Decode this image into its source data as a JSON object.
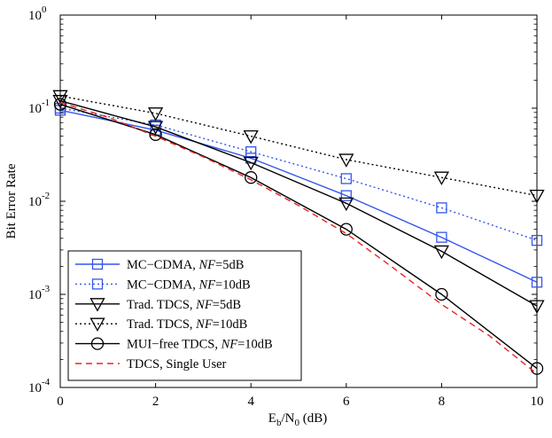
{
  "chart_data": {
    "type": "line",
    "title": "",
    "xlabel": {
      "main": "E",
      "sub1": "b",
      "mid": "/N",
      "sub2": "0",
      "tail": " (dB)"
    },
    "ylabel": "Bit Error Rate",
    "xlim": [
      0,
      10
    ],
    "ylim": [
      0.0001,
      1
    ],
    "yscale": "log",
    "grid": false,
    "legend_position": "bottom-left",
    "x_ticks": [
      "0",
      "2",
      "4",
      "6",
      "8",
      "10"
    ],
    "y_ticks": [
      {
        "base": "10",
        "exp": "-4"
      },
      {
        "base": "10",
        "exp": "-3"
      },
      {
        "base": "10",
        "exp": "-2"
      },
      {
        "base": "10",
        "exp": "-1"
      },
      {
        "base": "10",
        "exp": "0"
      }
    ],
    "series": [
      {
        "name": {
          "pre": "MC−CDMA, ",
          "nf": "NF",
          "post": "=5dB"
        },
        "color": "#3355ee",
        "dash": "solid",
        "marker": "square",
        "x": [
          0,
          2,
          4,
          6,
          8,
          10
        ],
        "y": [
          0.095,
          0.058,
          0.029,
          0.0115,
          0.0041,
          0.00135
        ]
      },
      {
        "name": {
          "pre": "MC−CDMA, ",
          "nf": "NF",
          "post": "=10dB"
        },
        "color": "#3355ee",
        "dash": "dotted",
        "marker": "square",
        "x": [
          0,
          2,
          4,
          6,
          8,
          10
        ],
        "y": [
          0.1,
          0.066,
          0.034,
          0.0175,
          0.0085,
          0.0038
        ]
      },
      {
        "name": {
          "pre": "Trad. TDCS, ",
          "nf": "NF",
          "post": "=5dB"
        },
        "color": "#000000",
        "dash": "solid",
        "marker": "triangle-down",
        "x": [
          0,
          2,
          4,
          6,
          8,
          10
        ],
        "y": [
          0.12,
          0.063,
          0.026,
          0.0095,
          0.0029,
          0.00075
        ]
      },
      {
        "name": {
          "pre": "Trad. TDCS, ",
          "nf": "NF",
          "post": "=10dB"
        },
        "color": "#000000",
        "dash": "dotted",
        "marker": "triangle-down",
        "x": [
          0,
          2,
          4,
          6,
          8,
          10
        ],
        "y": [
          0.135,
          0.088,
          0.05,
          0.028,
          0.018,
          0.0115
        ]
      },
      {
        "name": {
          "pre": "MUI−free TDCS, ",
          "nf": "NF",
          "post": "=10dB"
        },
        "color": "#000000",
        "dash": "solid",
        "marker": "circle",
        "x": [
          0,
          2,
          4,
          6,
          8,
          10
        ],
        "y": [
          0.11,
          0.052,
          0.018,
          0.005,
          0.001,
          0.00016
        ]
      },
      {
        "name": {
          "pre": "TDCS, Single User",
          "nf": "",
          "post": ""
        },
        "color": "#ee2222",
        "dash": "dashed",
        "marker": "none",
        "x": [
          0,
          1,
          2,
          3,
          4,
          5,
          6,
          7,
          8,
          9,
          10
        ],
        "y": [
          0.115,
          0.08,
          0.05,
          0.03,
          0.017,
          0.009,
          0.0045,
          0.0019,
          0.00078,
          0.00036,
          0.00014
        ]
      }
    ]
  }
}
